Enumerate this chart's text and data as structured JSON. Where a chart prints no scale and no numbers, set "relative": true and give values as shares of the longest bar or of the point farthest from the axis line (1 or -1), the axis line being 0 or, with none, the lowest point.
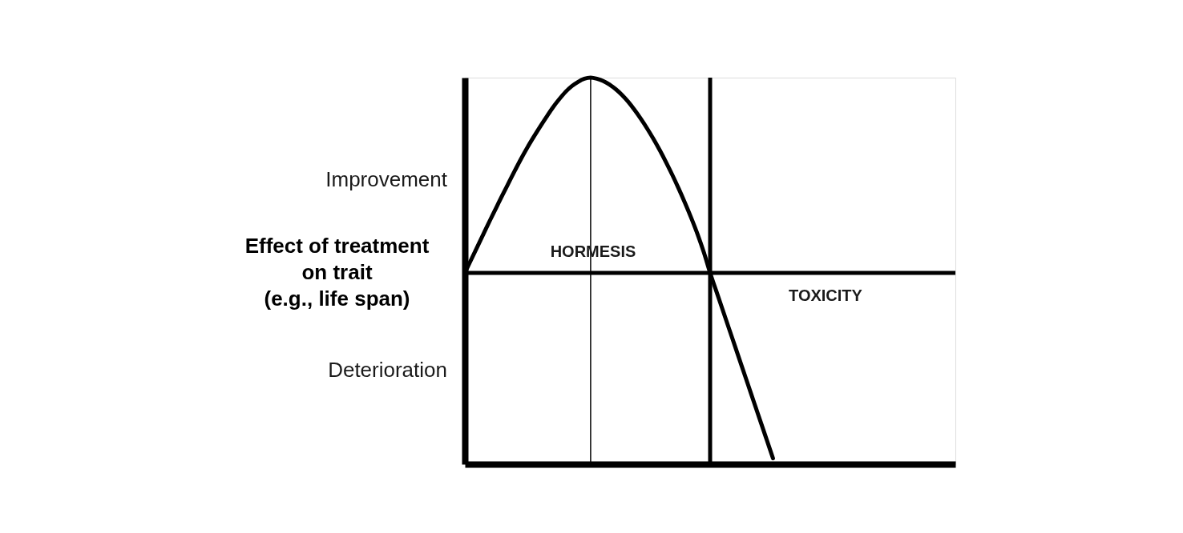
{
  "chart_data": {
    "type": "line",
    "relative": true,
    "ylabel": "Effect of treatment\non trait\n(e.g., life span)",
    "categories": [
      null,
      null,
      null,
      null,
      null,
      null,
      null,
      null,
      null,
      null,
      null,
      null,
      null,
      null,
      null,
      null,
      null,
      null,
      null,
      null,
      null,
      null,
      null,
      null,
      null,
      null,
      null,
      null,
      null,
      null,
      null,
      null,
      null,
      null,
      null,
      null,
      null,
      null,
      null,
      null,
      null,
      null,
      null,
      null,
      null,
      null,
      null,
      null,
      null,
      null,
      null,
      null,
      null,
      null,
      null,
      null,
      null,
      null,
      null,
      null,
      null,
      null,
      null,
      null,
      null,
      null,
      null,
      null,
      null,
      null,
      null,
      null,
      null,
      null,
      null,
      null,
      null,
      null,
      null
    ],
    "series": [
      {
        "color": "#000000",
        "values": [
          0.495,
          0.529,
          0.563,
          0.597,
          0.631,
          0.664,
          0.697,
          0.729,
          0.761,
          0.792,
          0.821,
          0.848,
          0.874,
          0.899,
          0.923,
          0.944,
          0.963,
          0.978,
          0.989,
          0.997,
          1.0,
          0.997,
          0.991,
          0.982,
          0.97,
          0.955,
          0.937,
          0.916,
          0.893,
          0.868,
          0.841,
          0.812,
          0.781,
          0.748,
          0.713,
          0.676,
          0.637,
          0.595,
          0.548,
          0.495,
          0.447,
          0.399,
          0.351,
          0.303,
          0.255,
          0.207,
          0.159,
          0.111,
          0.063,
          0.015,
          null,
          null,
          null,
          null,
          null,
          null,
          null,
          null,
          null,
          null,
          null,
          null,
          null,
          null,
          null,
          null,
          null,
          null,
          null,
          null,
          null,
          null,
          null,
          null,
          null,
          null,
          null,
          null,
          null
        ]
      }
    ],
    "ref_lines": [
      {
        "axis": "y",
        "value": 0.495,
        "color": "#000000"
      }
    ],
    "annotations": [
      "Improvement",
      "Deterioration",
      "HORMESIS",
      "TOXICITY"
    ]
  }
}
